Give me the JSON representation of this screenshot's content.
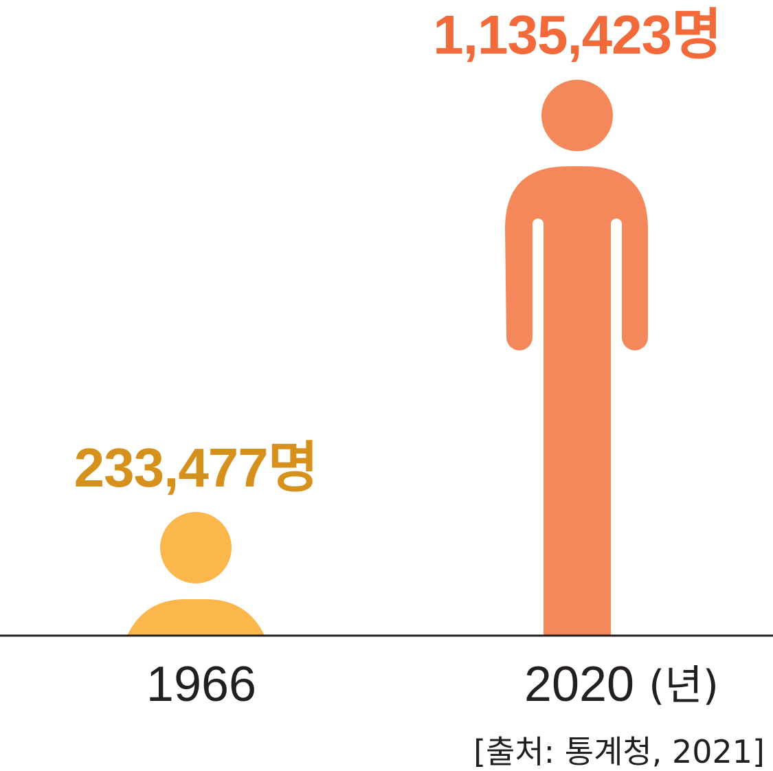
{
  "chart_data": {
    "type": "bar",
    "categories": [
      "1966",
      "2020"
    ],
    "values": [
      233477,
      1135423
    ],
    "value_labels": [
      "233,477명",
      "1,135,423명"
    ],
    "x_unit": "(년)",
    "source": "[출처: 통계청, 2021]",
    "colors": {
      "bar_1966": "#fbb74c",
      "bar_2020": "#f4885b",
      "label_1966": "#d6911c",
      "label_2020": "#f26a3a",
      "axis": "#231f20"
    },
    "grid": false
  }
}
